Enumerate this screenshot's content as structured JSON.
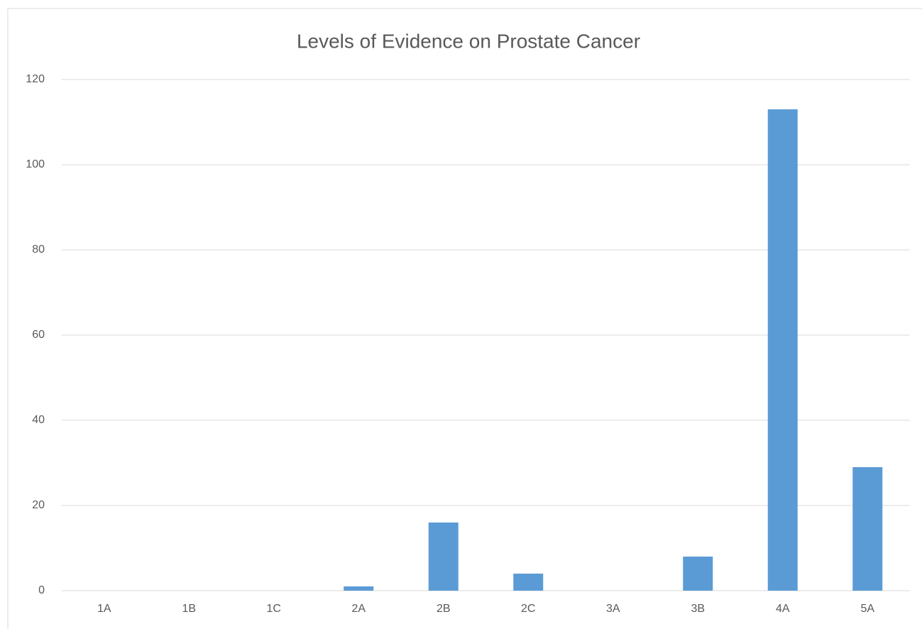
{
  "chart_data": {
    "type": "bar",
    "title": "Levels of Evidence on Prostate Cancer",
    "categories": [
      "1A",
      "1B",
      "1C",
      "2A",
      "2B",
      "2C",
      "3A",
      "3B",
      "4A",
      "5A"
    ],
    "values": [
      0,
      0,
      0,
      1,
      16,
      4,
      0,
      8,
      113,
      29
    ],
    "color": "#5b9bd5",
    "ylim": [
      0,
      120
    ],
    "yticks": [
      0,
      20,
      40,
      60,
      80,
      100,
      120
    ],
    "grid": true
  }
}
